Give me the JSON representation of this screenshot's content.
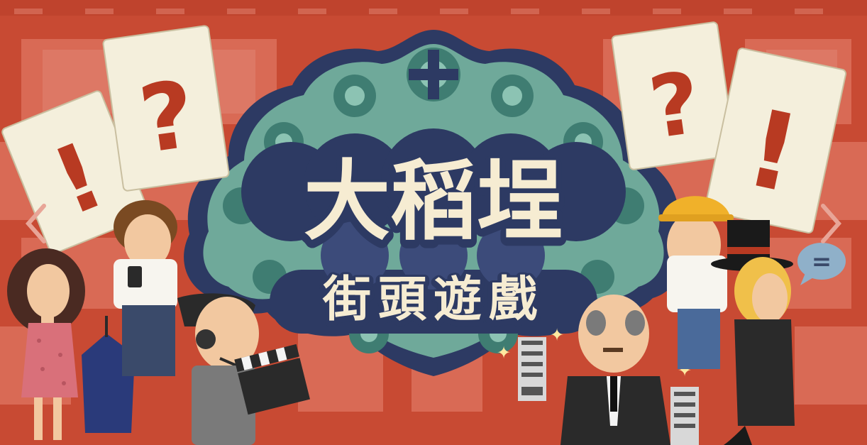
{
  "banner": {
    "title_main": "大稻埕",
    "title_sub": "街頭遊戲"
  },
  "cards": {
    "left_back_symbol": "!",
    "left_front_symbol": "?",
    "right_front_symbol": "?",
    "right_back_symbol": "!"
  },
  "speech_bubble_symbol": "=",
  "carousel": {
    "prev_icon": "chevron-left-icon",
    "next_icon": "chevron-right-icon"
  },
  "colors": {
    "background": "#c84a33",
    "tile": "#d96a55",
    "emblem_outer": "#2d3a63",
    "emblem_teal": "#6fa99a",
    "emblem_dark_teal": "#3f7d72",
    "title_fill": "#f6ecd2",
    "title_outline": "#2d3a63",
    "card": "#f4efdc",
    "card_mark": "#b83a22"
  }
}
